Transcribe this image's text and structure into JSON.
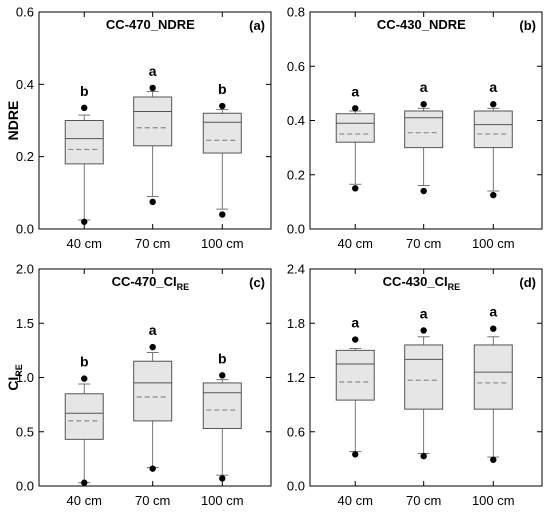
{
  "chart_data": [
    {
      "type": "box",
      "panel_label": "(a)",
      "title": "CC-470_NDRE",
      "ylabel": "NDRE",
      "ylim": [
        0,
        0.6
      ],
      "yticks": [
        "0.0",
        "0.2",
        "0.4",
        "0.6"
      ],
      "categories": [
        "40 cm",
        "70 cm",
        "100 cm"
      ],
      "boxes": [
        {
          "category": "40 cm",
          "whisker_low": 0.025,
          "q1": 0.18,
          "median": 0.25,
          "mean": 0.22,
          "q3": 0.3,
          "whisker_high": 0.315,
          "outliers": [
            0.02,
            0.335
          ],
          "significance": "b"
        },
        {
          "category": "70 cm",
          "whisker_low": 0.09,
          "q1": 0.23,
          "median": 0.325,
          "mean": 0.28,
          "q3": 0.365,
          "whisker_high": 0.38,
          "outliers": [
            0.075,
            0.39
          ],
          "significance": "a"
        },
        {
          "category": "100 cm",
          "whisker_low": 0.055,
          "q1": 0.21,
          "median": 0.295,
          "mean": 0.245,
          "q3": 0.32,
          "whisker_high": 0.33,
          "outliers": [
            0.04,
            0.34
          ],
          "significance": "b"
        }
      ]
    },
    {
      "type": "box",
      "panel_label": "(b)",
      "title": "CC-430_NDRE",
      "ylabel": "",
      "ylim": [
        0,
        0.8
      ],
      "yticks": [
        "0.0",
        "0.2",
        "0.4",
        "0.6",
        "0.8"
      ],
      "categories": [
        "40 cm",
        "70 cm",
        "100 cm"
      ],
      "boxes": [
        {
          "category": "40 cm",
          "whisker_low": 0.165,
          "q1": 0.32,
          "median": 0.39,
          "mean": 0.35,
          "q3": 0.425,
          "whisker_high": 0.435,
          "outliers": [
            0.15,
            0.445
          ],
          "significance": "a"
        },
        {
          "category": "70 cm",
          "whisker_low": 0.16,
          "q1": 0.3,
          "median": 0.41,
          "mean": 0.355,
          "q3": 0.435,
          "whisker_high": 0.445,
          "outliers": [
            0.14,
            0.46
          ],
          "significance": "a"
        },
        {
          "category": "100 cm",
          "whisker_low": 0.14,
          "q1": 0.3,
          "median": 0.385,
          "mean": 0.35,
          "q3": 0.435,
          "whisker_high": 0.445,
          "outliers": [
            0.125,
            0.46
          ],
          "significance": "a"
        }
      ]
    },
    {
      "type": "box",
      "panel_label": "(c)",
      "title": "CC-470_CI",
      "title_subscript": "RE",
      "ylabel": "CI",
      "ylabel_subscript": "RE",
      "ylim": [
        0,
        2.0
      ],
      "yticks": [
        "0.0",
        "0.5",
        "1.0",
        "1.5",
        "2.0"
      ],
      "categories": [
        "40 cm",
        "70 cm",
        "100 cm"
      ],
      "boxes": [
        {
          "category": "40 cm",
          "whisker_low": 0.03,
          "q1": 0.43,
          "median": 0.67,
          "mean": 0.6,
          "q3": 0.85,
          "whisker_high": 0.94,
          "outliers": [
            0.03,
            0.99
          ],
          "significance": "b"
        },
        {
          "category": "70 cm",
          "whisker_low": 0.17,
          "q1": 0.6,
          "median": 0.95,
          "mean": 0.82,
          "q3": 1.15,
          "whisker_high": 1.23,
          "outliers": [
            0.16,
            1.28
          ],
          "significance": "a"
        },
        {
          "category": "100 cm",
          "whisker_low": 0.1,
          "q1": 0.53,
          "median": 0.86,
          "mean": 0.7,
          "q3": 0.95,
          "whisker_high": 0.98,
          "outliers": [
            0.07,
            1.02
          ],
          "significance": "b"
        }
      ]
    },
    {
      "type": "box",
      "panel_label": "(d)",
      "title": "CC-430_CI",
      "title_subscript": "RE",
      "ylabel": "",
      "ylim": [
        0,
        2.4
      ],
      "yticks": [
        "0.0",
        "0.6",
        "1.2",
        "1.8",
        "2.4"
      ],
      "categories": [
        "40 cm",
        "70 cm",
        "100 cm"
      ],
      "boxes": [
        {
          "category": "40 cm",
          "whisker_low": 0.38,
          "q1": 0.95,
          "median": 1.35,
          "mean": 1.15,
          "q3": 1.5,
          "whisker_high": 1.52,
          "outliers": [
            0.35,
            1.62
          ],
          "significance": "a"
        },
        {
          "category": "70 cm",
          "whisker_low": 0.36,
          "q1": 0.85,
          "median": 1.4,
          "mean": 1.17,
          "q3": 1.56,
          "whisker_high": 1.65,
          "outliers": [
            0.33,
            1.72
          ],
          "significance": "a"
        },
        {
          "category": "100 cm",
          "whisker_low": 0.32,
          "q1": 0.85,
          "median": 1.26,
          "mean": 1.14,
          "q3": 1.56,
          "whisker_high": 1.65,
          "outliers": [
            0.29,
            1.74
          ],
          "significance": "a"
        }
      ]
    }
  ],
  "colors": {
    "box_fill": "#e6e6e6",
    "box_stroke": "#555555",
    "mean_line": "#8a8a8a",
    "outlier": "#000000",
    "axis": "#000000"
  }
}
